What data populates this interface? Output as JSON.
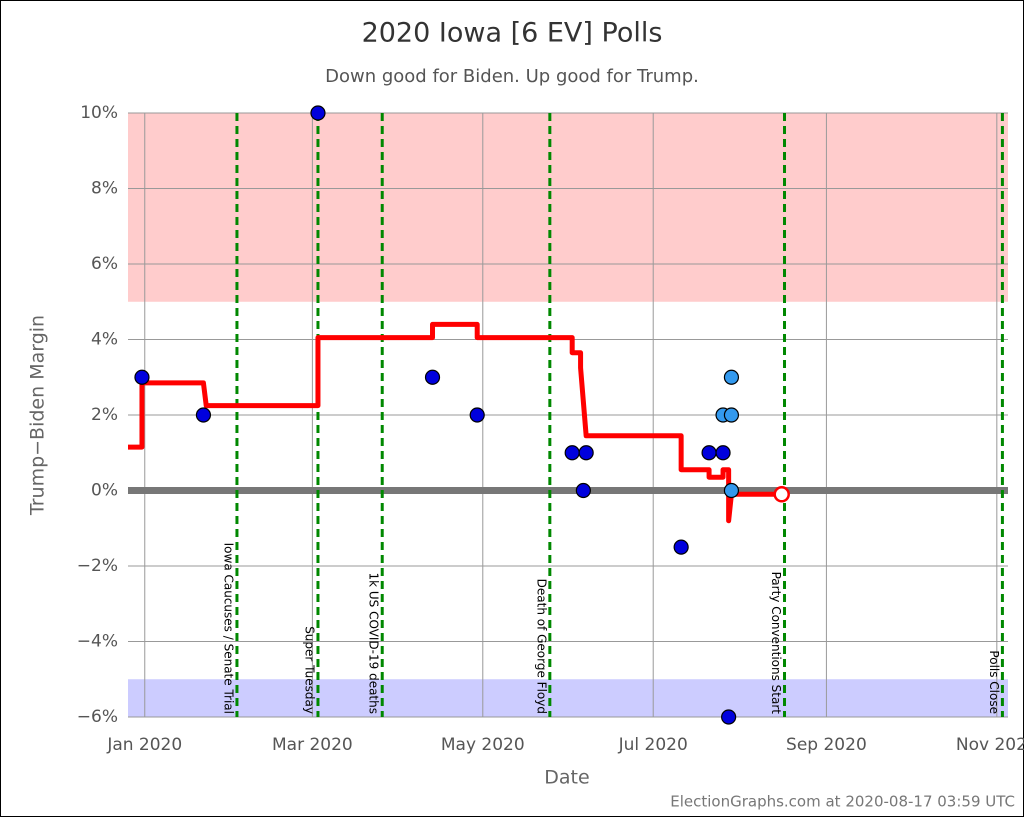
{
  "chart_data": {
    "type": "poll-timeline",
    "title": "2020 Iowa [6 EV] Polls",
    "subtitle": "Down good for Biden. Up good for Trump.",
    "y_label": "Trump−Biden Margin",
    "x_label": "Date",
    "credit": "ElectionGraphs.com at 2020-08-17 03:59 UTC",
    "xlim": [
      "2019-12-26",
      "2020-11-05"
    ],
    "xticks": [
      {
        "value": "2020-01-01",
        "label": "Jan 2020"
      },
      {
        "value": "2020-03-01",
        "label": "Mar 2020"
      },
      {
        "value": "2020-05-01",
        "label": "May 2020"
      },
      {
        "value": "2020-07-01",
        "label": "Jul 2020"
      },
      {
        "value": "2020-09-01",
        "label": "Sep 2020"
      },
      {
        "value": "2020-11-01",
        "label": "Nov 2020"
      }
    ],
    "ylim": [
      -6,
      10
    ],
    "yticks": [
      {
        "value": -6,
        "label": "−6%"
      },
      {
        "value": -4,
        "label": "−4%"
      },
      {
        "value": -2,
        "label": "−2%"
      },
      {
        "value": 0,
        "label": "0%"
      },
      {
        "value": 2,
        "label": "2%"
      },
      {
        "value": 4,
        "label": "4%"
      },
      {
        "value": 6,
        "label": "6%"
      },
      {
        "value": 8,
        "label": "8%"
      },
      {
        "value": 10,
        "label": "10%"
      }
    ],
    "grid": true,
    "bands": [
      {
        "from": 5,
        "to": 10,
        "color": "#ffcccc"
      },
      {
        "from": -6,
        "to": -5,
        "color": "#ccccff"
      }
    ],
    "reference_line": {
      "value": 0,
      "color": "#777777"
    },
    "events": [
      {
        "date": "2020-02-03",
        "label": "Iowa Caucuses / Senate Trial"
      },
      {
        "date": "2020-03-03",
        "label": "Super Tuesday"
      },
      {
        "date": "2020-03-26",
        "label": "1k US COVID-19 deaths"
      },
      {
        "date": "2020-05-25",
        "label": "Death of George Floyd"
      },
      {
        "date": "2020-08-17",
        "label": "Party Conventions Start"
      },
      {
        "date": "2020-11-03",
        "label": "Polls Close"
      }
    ],
    "event_color": "#008800",
    "average": {
      "color": "#ff0000",
      "x": [
        "2019-12-26",
        "2019-12-31",
        "2019-12-31",
        "2020-01-22",
        "2020-01-23",
        "2020-03-03",
        "2020-03-03",
        "2020-04-13",
        "2020-04-13",
        "2020-04-29",
        "2020-04-29",
        "2020-06-02",
        "2020-06-02",
        "2020-06-05",
        "2020-06-05",
        "2020-06-07",
        "2020-07-11",
        "2020-07-11",
        "2020-07-21",
        "2020-07-21",
        "2020-07-26",
        "2020-07-26",
        "2020-07-28",
        "2020-07-28",
        "2020-07-29",
        "2020-08-16"
      ],
      "values": [
        1.15,
        1.15,
        2.85,
        2.85,
        2.25,
        2.25,
        4.05,
        4.05,
        4.4,
        4.4,
        4.05,
        4.05,
        3.65,
        3.65,
        3.25,
        1.45,
        1.45,
        0.55,
        0.55,
        0.35,
        0.35,
        0.55,
        0.55,
        -0.8,
        -0.1,
        -0.1
      ]
    },
    "series": [
      {
        "color": "#0000dd",
        "x": [
          "2019-12-31",
          "2020-01-22",
          "2020-03-03",
          "2020-04-13",
          "2020-04-29",
          "2020-06-02",
          "2020-06-07",
          "2020-06-06",
          "2020-07-11",
          "2020-07-21",
          "2020-07-26",
          "2020-07-28"
        ],
        "values": [
          3,
          2,
          10,
          3,
          2,
          1,
          1,
          0,
          -1.5,
          1,
          1,
          -6
        ]
      },
      {
        "color": "#3399ee",
        "x": [
          "2020-07-26",
          "2020-07-29",
          "2020-07-29",
          "2020-07-29"
        ],
        "values": [
          2,
          3,
          2,
          0
        ]
      }
    ]
  }
}
